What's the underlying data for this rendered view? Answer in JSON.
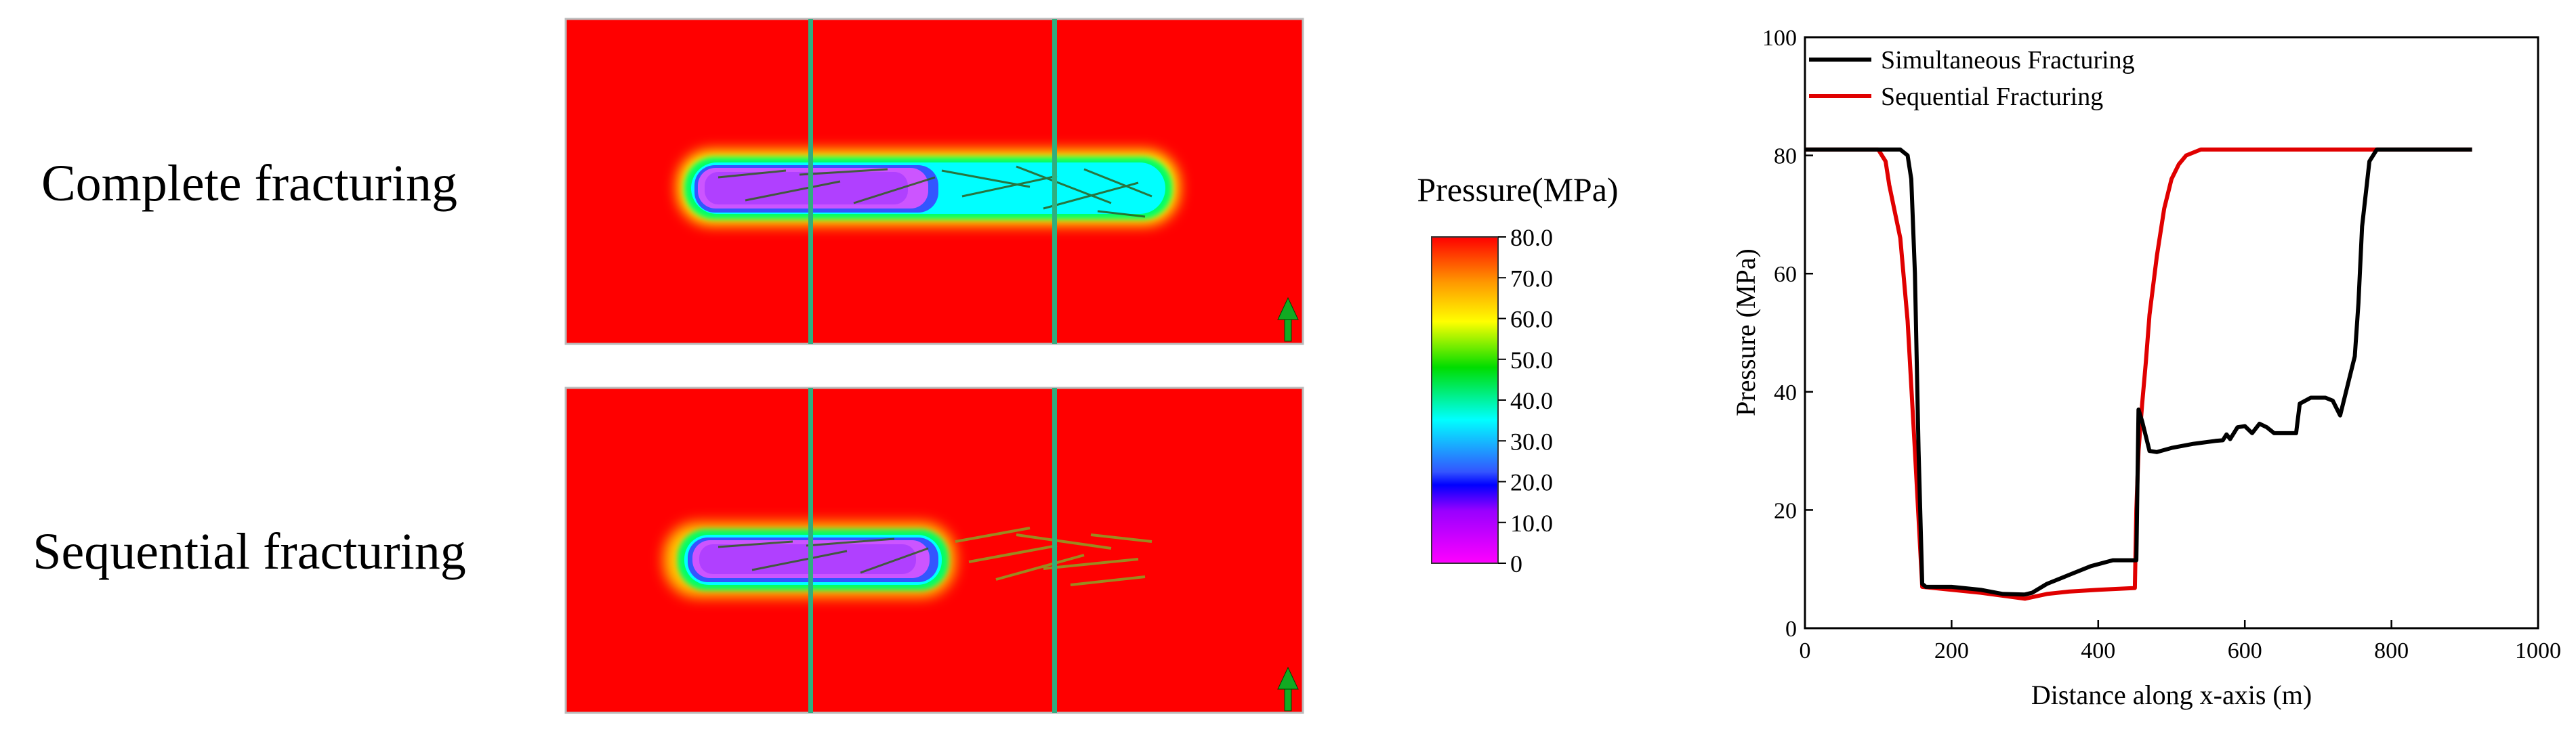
{
  "labels": {
    "row1": "Complete fracturing",
    "row2": "Sequential fracturing"
  },
  "colorbar": {
    "title": "Pressure(MPa)",
    "ticks": [
      "80.0",
      "70.0",
      "60.0",
      "50.0",
      "40.0",
      "30.0",
      "20.0",
      "10.0",
      "0"
    ],
    "tick_values": [
      80,
      70,
      60,
      50,
      40,
      30,
      20,
      10,
      0
    ],
    "colors": [
      "#ff0000",
      "#ff9900",
      "#ffff00",
      "#00dd00",
      "#00ffff",
      "#0000ff",
      "#9900ff",
      "#ff00ff"
    ]
  },
  "chart_data": {
    "type": "line",
    "xlabel": "Distance along x-axis (m)",
    "ylabel": "Pressure (MPa)",
    "xlim": [
      0,
      1000
    ],
    "ylim": [
      0,
      100
    ],
    "xticks": [
      0,
      200,
      400,
      600,
      800,
      1000
    ],
    "yticks": [
      0,
      20,
      40,
      60,
      80,
      100
    ],
    "legend_position": "top-left",
    "grid": false,
    "series": [
      {
        "name": "Simultaneous Fracturing",
        "color": "#000000",
        "x": [
          0,
          100,
          130,
          140,
          145,
          150,
          155,
          160,
          165,
          200,
          240,
          270,
          300,
          310,
          330,
          360,
          390,
          420,
          440,
          452,
          455,
          460,
          470,
          480,
          500,
          530,
          560,
          570,
          575,
          580,
          590,
          600,
          610,
          620,
          630,
          640,
          650,
          660,
          670,
          675,
          690,
          710,
          720,
          730,
          740,
          750,
          755,
          760,
          770,
          780,
          800,
          910
        ],
        "y": [
          81,
          81,
          81,
          80,
          76,
          60,
          30,
          7.5,
          7,
          7,
          6.5,
          5.8,
          5.7,
          6,
          7.5,
          9,
          10.5,
          11.5,
          11.5,
          11.5,
          37,
          35,
          30,
          29.8,
          30.5,
          31.2,
          31.7,
          31.8,
          32.8,
          32,
          34,
          34.2,
          33,
          34.6,
          34,
          33,
          33,
          33,
          33,
          38,
          39,
          39,
          38.5,
          36,
          41,
          46,
          55,
          68,
          79,
          81,
          81,
          81
        ]
      },
      {
        "name": "Sequential Fracturing",
        "color": "#e00000",
        "x": [
          0,
          100,
          110,
          115,
          120,
          130,
          140,
          150,
          160,
          200,
          240,
          270,
          300,
          330,
          360,
          400,
          450,
          452,
          455,
          460,
          465,
          470,
          480,
          490,
          500,
          510,
          520,
          540,
          580,
          700,
          910
        ],
        "y": [
          81,
          81,
          79,
          75,
          72,
          66,
          52,
          30,
          7,
          6.5,
          6,
          5.5,
          5,
          5.8,
          6.2,
          6.5,
          6.8,
          20,
          30,
          38,
          45,
          53,
          63,
          71,
          76,
          78.5,
          80,
          81,
          81,
          81,
          81
        ]
      }
    ]
  }
}
